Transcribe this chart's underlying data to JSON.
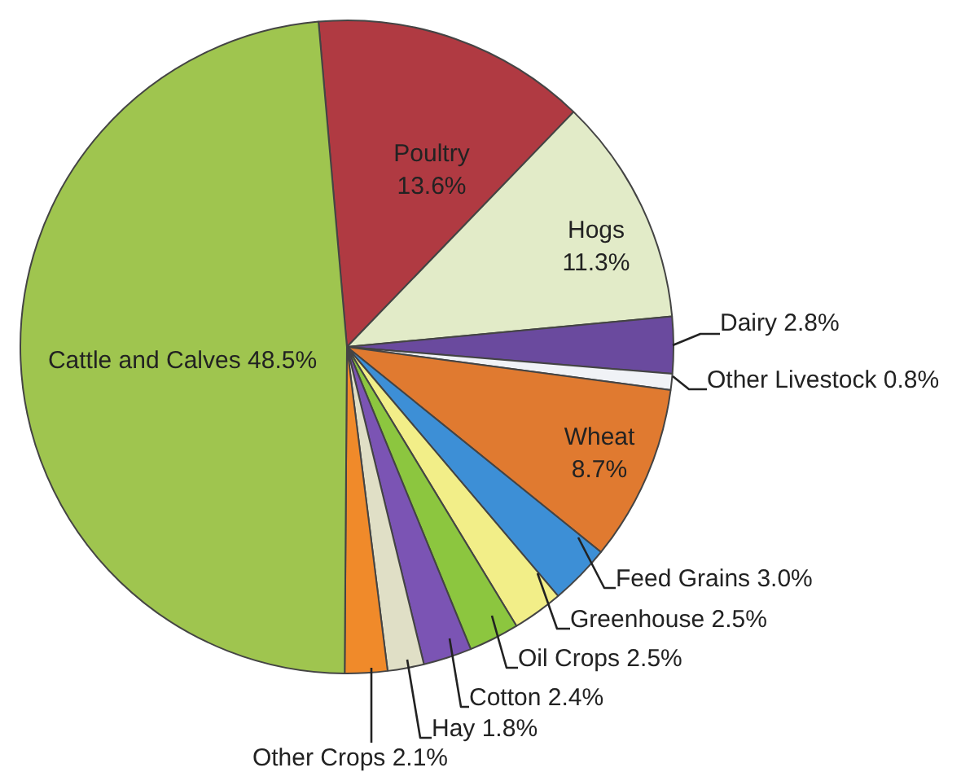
{
  "chart_data": {
    "type": "pie",
    "categories": [
      "Poultry",
      "Hogs",
      "Dairy",
      "Other Livestock",
      "Wheat",
      "Feed Grains",
      "Greenhouse",
      "Oil Crops",
      "Cotton",
      "Hay",
      "Other Crops",
      "Cattle and Calves"
    ],
    "values": [
      13.6,
      11.3,
      2.8,
      0.8,
      8.7,
      3.0,
      2.5,
      2.5,
      2.4,
      1.8,
      2.1,
      48.5
    ],
    "colors": [
      "#b03a42",
      "#e2ebc8",
      "#6a4a9e",
      "#f0f2f6",
      "#e07a30",
      "#3d8fd6",
      "#f2ee88",
      "#8cc63f",
      "#7b54b4",
      "#e0dfc6",
      "#f08a2a",
      "#9fc54f"
    ],
    "value_labels": [
      "13.6%",
      "11.3%",
      "2.8%",
      "0.8%",
      "8.7%",
      "3.0%",
      "2.5%",
      "2.5%",
      "2.4%",
      "1.8%",
      "2.1%",
      "48.5%"
    ],
    "legend": false
  }
}
